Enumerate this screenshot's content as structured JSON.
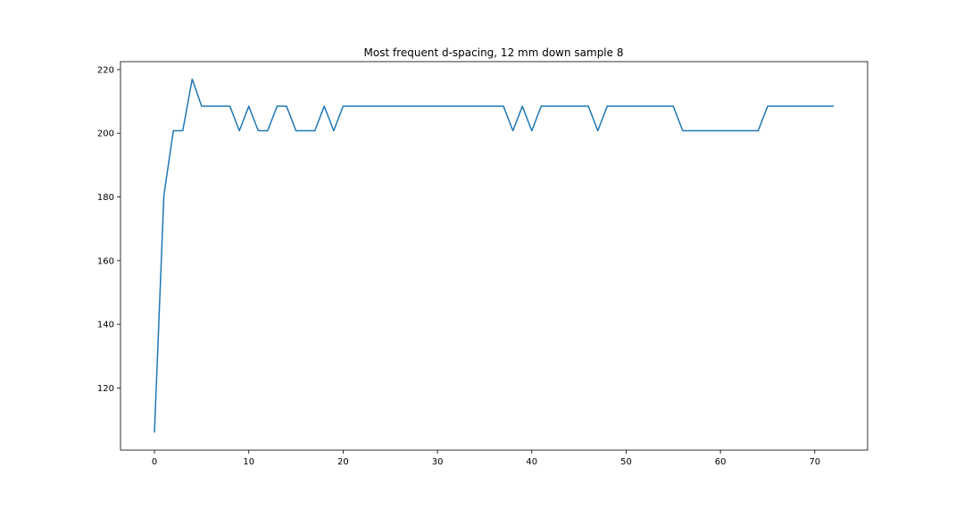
{
  "chart_data": {
    "type": "line",
    "title": "Most frequent d-spacing, 12 mm down sample 8",
    "xlabel": "",
    "ylabel": "",
    "xlim": [
      -3.6,
      75.6
    ],
    "ylim": [
      100.5,
      222.5
    ],
    "xticks": [
      0,
      10,
      20,
      30,
      40,
      50,
      60,
      70
    ],
    "yticks": [
      120,
      140,
      160,
      180,
      200,
      220
    ],
    "grid": false,
    "legend": "none",
    "line_color": "#1f77b4",
    "series": [
      {
        "x": [
          0,
          1,
          2,
          3,
          4,
          5,
          6,
          7,
          8,
          9,
          10,
          11,
          12,
          13,
          14,
          15,
          16,
          17,
          18,
          19,
          20,
          21,
          22,
          23,
          24,
          25,
          26,
          27,
          28,
          29,
          30,
          31,
          32,
          33,
          34,
          35,
          36,
          37,
          38,
          39,
          40,
          41,
          42,
          43,
          44,
          45,
          46,
          47,
          48,
          49,
          50,
          51,
          52,
          53,
          54,
          55,
          56,
          57,
          58,
          59,
          60,
          61,
          62,
          63,
          64,
          65,
          66,
          67,
          68,
          69,
          70,
          71,
          72
        ],
        "values": [
          106,
          180.5,
          200.8,
          200.8,
          217,
          208.5,
          208.5,
          208.5,
          208.5,
          200.8,
          208.5,
          200.8,
          200.8,
          208.5,
          208.5,
          200.8,
          200.8,
          200.8,
          208.5,
          200.8,
          208.5,
          208.5,
          208.5,
          208.5,
          208.5,
          208.5,
          208.5,
          208.5,
          208.5,
          208.5,
          208.5,
          208.5,
          208.5,
          208.5,
          208.5,
          208.5,
          208.5,
          208.5,
          200.8,
          208.5,
          200.8,
          208.5,
          208.5,
          208.5,
          208.5,
          208.5,
          208.5,
          200.8,
          208.5,
          208.5,
          208.5,
          208.5,
          208.5,
          208.5,
          208.5,
          208.5,
          200.8,
          200.8,
          200.8,
          200.8,
          200.8,
          200.8,
          200.8,
          200.8,
          200.8,
          208.5,
          208.5,
          208.5,
          208.5,
          208.5,
          208.5,
          208.5,
          208.5
        ]
      }
    ]
  }
}
